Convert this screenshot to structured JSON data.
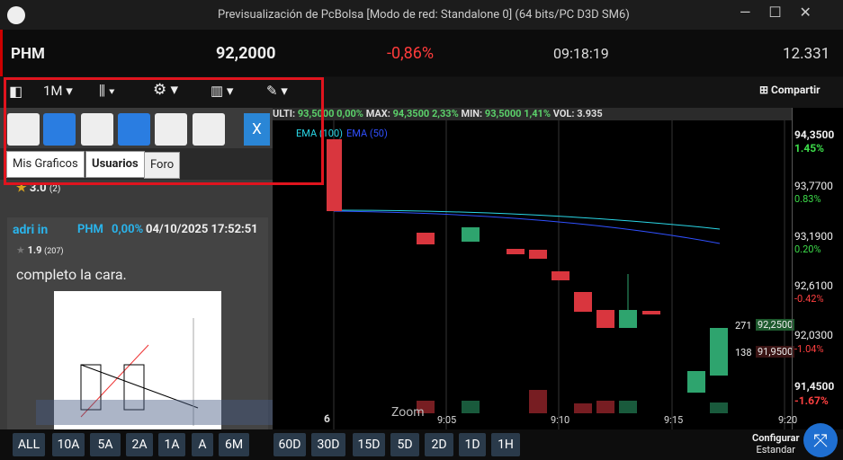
{
  "window": {
    "title": "Previsualización de PcBolsa [Modo de red: Standalone 0]  (64 bits/PC D3D SM6)"
  },
  "ticker": {
    "symbol": "PHM",
    "price": "92,2000",
    "change": "-0,86%",
    "time": "09:18:19",
    "volume": "12.331"
  },
  "toolbar": {
    "period": "1M",
    "share": "Compartir"
  },
  "panel": {
    "close": "X",
    "tabs": [
      "Mis Graficos",
      "Usuarios",
      "Foro"
    ],
    "rating": "3.0",
    "rating_count": "(2)",
    "post": {
      "user": "adri in",
      "symbol": "PHM",
      "change": "0,00%",
      "date": "04/10/2025 17:52:51",
      "rating": "1.9",
      "rating_count": "(207)",
      "text": "completo la cara."
    }
  },
  "chart": {
    "info": [
      "ULTI:",
      "93,5000",
      "0,00%",
      "MAX:",
      "94,3500",
      "2,33%",
      "MIN:",
      "93,5000",
      "1,41%",
      "VOL:",
      "3.935"
    ],
    "legend": [
      "EMA (100)",
      "EMA (50)"
    ],
    "price_labels": [
      "94,3500",
      "93,7700",
      "93,1900",
      "92,6100",
      "92,0300",
      "91,4500"
    ],
    "pct_labels": [
      "1.45%",
      "0.83%",
      "0.20%",
      "-0.42%",
      "-1.04%",
      "-1.67%"
    ],
    "time_labels": [
      "6",
      "9:05",
      "9:10",
      "9:15",
      "9:20"
    ],
    "last_bid": [
      "271",
      "92,2500"
    ],
    "last_ask": [
      "138",
      "91,9500"
    ],
    "zoom": "Zoom"
  },
  "ranges": [
    "ALL",
    "10A",
    "5A",
    "2A",
    "1A",
    "A",
    "6M",
    "60D",
    "30D",
    "15D",
    "5D",
    "2D",
    "1D",
    "1H"
  ],
  "config": [
    "Configurar",
    "Estandar"
  ]
}
